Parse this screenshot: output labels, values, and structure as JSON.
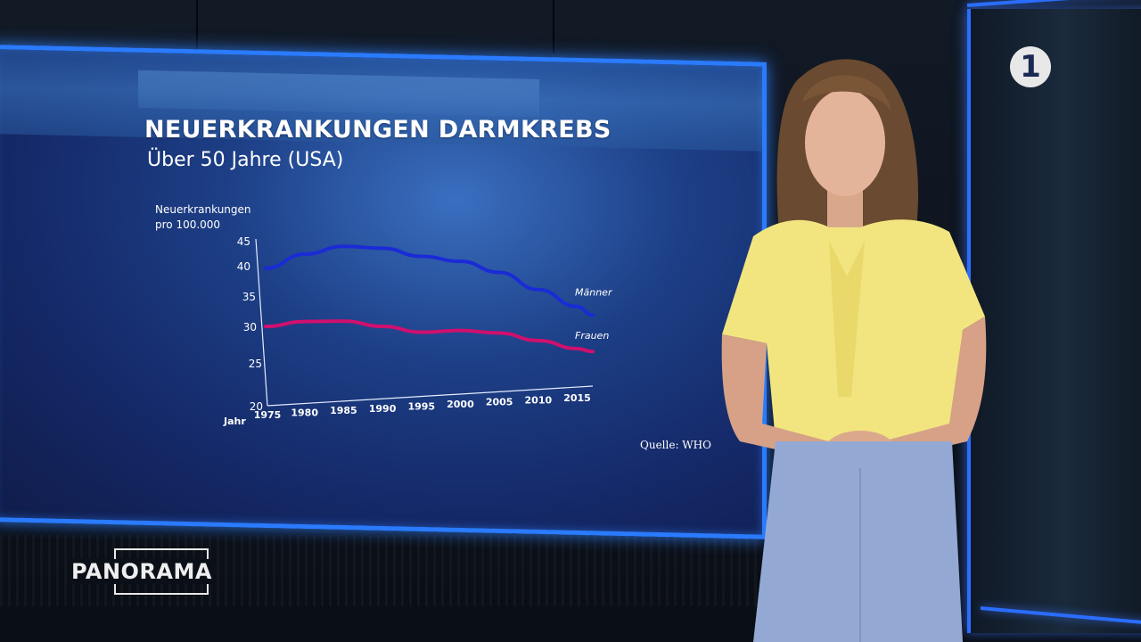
{
  "chart_data": {
    "type": "line",
    "title": "NEUERKRANKUNGEN DARMKREBS",
    "subtitle": "Über 50 Jahre (USA)",
    "ylabel_line1": "Neuerkrankungen",
    "ylabel_line2": "pro 100.000",
    "xlabel": "Jahr",
    "ylim": [
      20,
      45
    ],
    "yticks": [
      20,
      25,
      30,
      35,
      40,
      45
    ],
    "x": [
      1975,
      1980,
      1985,
      1990,
      1995,
      2000,
      2005,
      2010,
      2015,
      2017
    ],
    "xticks": [
      1975,
      1980,
      1985,
      1990,
      1995,
      2000,
      2005,
      2010,
      2015
    ],
    "series": [
      {
        "name": "Männer",
        "color": "#1a2bd6",
        "values": [
          41,
          43,
          44,
          43.5,
          42,
          41,
          39,
          36,
          33,
          31.5
        ]
      },
      {
        "name": "Frauen",
        "color": "#d0106e",
        "values": [
          32,
          32.5,
          32.3,
          31.2,
          30,
          30,
          29.3,
          27.8,
          26.2,
          25.6
        ]
      }
    ],
    "source": "Quelle: WHO",
    "grid": false,
    "legend": "inline labels at line ends"
  },
  "branding": {
    "channel_logo": "1",
    "show_name": "PANORAMA"
  }
}
